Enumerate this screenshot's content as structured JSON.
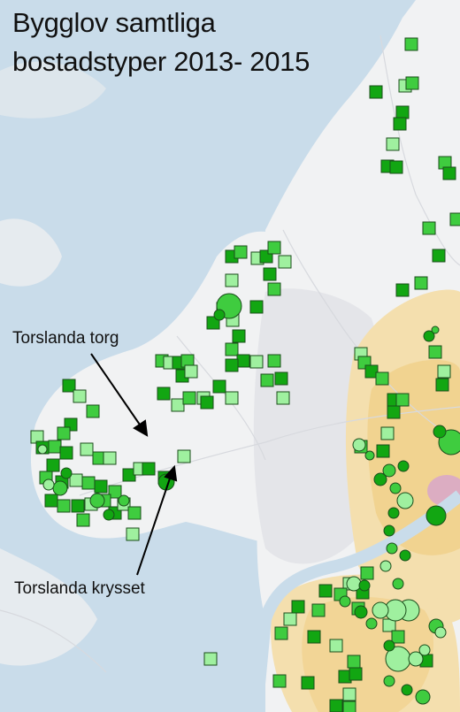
{
  "title": {
    "line1": "Bygglov samtliga",
    "line2": "bostadstyper 2013- 2015"
  },
  "annotations": {
    "torslanda_torg": "Torslanda torg",
    "torslanda_krysset": "Torslanda krysset"
  },
  "colors": {
    "water": "#c9dcea",
    "land": "#f1f2f3",
    "urban": "#e8e9ec",
    "density_high": "#f0cf86",
    "density_mid": "#f4dfae",
    "density_peak": "#d9a9c8",
    "marker_dark": "#12a612",
    "marker_mid": "#3fcc3f",
    "marker_light": "#9ff09f",
    "marker_stroke": "#1b4d1b"
  },
  "legend_symbols": {
    "square": "building-permit-square",
    "circle": "building-permit-circle"
  }
}
